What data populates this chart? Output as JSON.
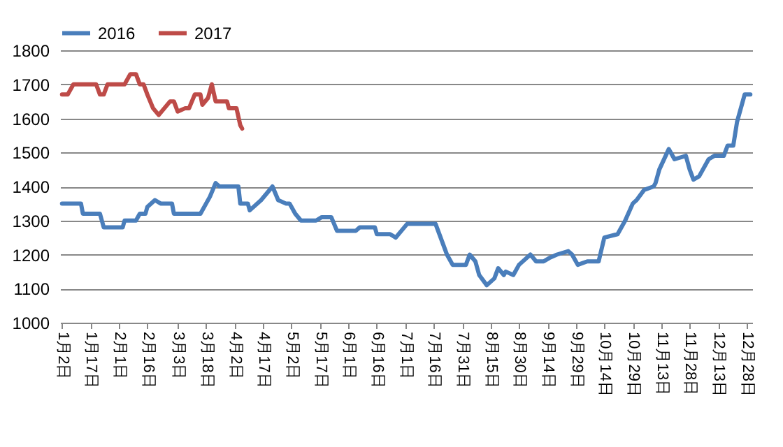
{
  "chart_data": {
    "type": "line",
    "legend": "top",
    "grid": "y",
    "marker": "none",
    "line_style": "solid",
    "ylim": [
      1000,
      1800
    ],
    "yticks": [
      1000,
      1100,
      1200,
      1300,
      1400,
      1500,
      1600,
      1700,
      1800
    ],
    "xlim": [
      "--01-01",
      "--12-31"
    ],
    "xticks": [
      {
        "value": "--01-02",
        "label": "1月2日"
      },
      {
        "value": "--01-17",
        "label": "1月17日"
      },
      {
        "value": "--02-01",
        "label": "2月1日"
      },
      {
        "value": "--02-16",
        "label": "2月16日"
      },
      {
        "value": "--03-03",
        "label": "3月3日"
      },
      {
        "value": "--03-18",
        "label": "3月18日"
      },
      {
        "value": "--04-02",
        "label": "4月2日"
      },
      {
        "value": "--04-17",
        "label": "4月17日"
      },
      {
        "value": "--05-02",
        "label": "5月2日"
      },
      {
        "value": "--05-17",
        "label": "5月17日"
      },
      {
        "value": "--06-01",
        "label": "6月1日"
      },
      {
        "value": "--06-16",
        "label": "6月16日"
      },
      {
        "value": "--07-01",
        "label": "7月1日"
      },
      {
        "value": "--07-16",
        "label": "7月16日"
      },
      {
        "value": "--07-31",
        "label": "7月31日"
      },
      {
        "value": "--08-15",
        "label": "8月15日"
      },
      {
        "value": "--08-30",
        "label": "8月30日"
      },
      {
        "value": "--09-14",
        "label": "9月14日"
      },
      {
        "value": "--09-29",
        "label": "9月29日"
      },
      {
        "value": "--10-14",
        "label": "10月14日"
      },
      {
        "value": "--10-29",
        "label": "10月29日"
      },
      {
        "value": "--11-13",
        "label": "11月13日"
      },
      {
        "value": "--11-28",
        "label": "11月28日"
      },
      {
        "value": "--12-13",
        "label": "12月13日"
      },
      {
        "value": "--12-28",
        "label": "12月28日"
      }
    ],
    "series": [
      {
        "name": "2016",
        "color": "#4a7ebb",
        "x": [
          "--01-02",
          "--01-12",
          "--01-13",
          "--01-22",
          "--01-24",
          "--02-03",
          "--02-04",
          "--02-10",
          "--02-12",
          "--02-15",
          "--02-16",
          "--02-20",
          "--02-23",
          "--02-29",
          "--03-01",
          "--03-15",
          "--03-18",
          "--03-20",
          "--03-23",
          "--03-25",
          "--04-04",
          "--04-05",
          "--04-09",
          "--04-10",
          "--04-16",
          "--04-22",
          "--04-25",
          "--04-29",
          "--05-01",
          "--05-04",
          "--05-07",
          "--05-15",
          "--05-18",
          "--05-23",
          "--05-26",
          "--06-05",
          "--06-07",
          "--06-15",
          "--06-16",
          "--06-23",
          "--06-26",
          "--07-02",
          "--07-17",
          "--07-21",
          "--07-23",
          "--07-26",
          "--08-02",
          "--08-04",
          "--08-07",
          "--08-09",
          "--08-13",
          "--08-17",
          "--08-19",
          "--08-22",
          "--08-23",
          "--08-27",
          "--08-30",
          "--09-05",
          "--09-08",
          "--09-12",
          "--09-15",
          "--09-19",
          "--09-25",
          "--09-27",
          "--09-30",
          "--10-05",
          "--10-11",
          "--10-14",
          "--10-21",
          "--10-25",
          "--10-29",
          "--10-31",
          "--11-04",
          "--11-09",
          "--11-10",
          "--11-12",
          "--11-17",
          "--11-20",
          "--11-26",
          "--11-28",
          "--11-30",
          "--12-03",
          "--12-08",
          "--12-11",
          "--12-16",
          "--12-18",
          "--12-21",
          "--12-23",
          "--12-27",
          "--12-30"
        ],
        "values": [
          1350,
          1350,
          1320,
          1320,
          1280,
          1280,
          1300,
          1300,
          1320,
          1320,
          1340,
          1360,
          1350,
          1350,
          1320,
          1320,
          1350,
          1370,
          1410,
          1400,
          1400,
          1350,
          1350,
          1330,
          1360,
          1400,
          1360,
          1350,
          1350,
          1320,
          1300,
          1300,
          1310,
          1310,
          1270,
          1270,
          1280,
          1280,
          1260,
          1260,
          1250,
          1290,
          1290,
          1230,
          1200,
          1170,
          1170,
          1200,
          1180,
          1140,
          1110,
          1130,
          1160,
          1140,
          1150,
          1140,
          1170,
          1200,
          1180,
          1180,
          1190,
          1200,
          1210,
          1200,
          1170,
          1180,
          1180,
          1250,
          1260,
          1300,
          1350,
          1360,
          1390,
          1400,
          1410,
          1450,
          1510,
          1480,
          1490,
          1450,
          1420,
          1430,
          1480,
          1490,
          1490,
          1520,
          1520,
          1590,
          1670,
          1670
        ]
      },
      {
        "name": "2017",
        "color": "#be4b48",
        "x": [
          "--01-02",
          "--01-05",
          "--01-08",
          "--01-20",
          "--01-22",
          "--01-24",
          "--01-26",
          "--02-04",
          "--02-07",
          "--02-10",
          "--02-12",
          "--02-14",
          "--02-16",
          "--02-19",
          "--02-22",
          "--02-28",
          "--03-01",
          "--03-03",
          "--03-07",
          "--03-09",
          "--03-12",
          "--03-15",
          "--03-16",
          "--03-19",
          "--03-21",
          "--03-23",
          "--03-29",
          "--03-30",
          "--04-03",
          "--04-05",
          "--04-06"
        ],
        "values": [
          1670,
          1670,
          1700,
          1700,
          1670,
          1670,
          1700,
          1700,
          1730,
          1730,
          1700,
          1700,
          1670,
          1630,
          1610,
          1650,
          1650,
          1620,
          1630,
          1630,
          1670,
          1670,
          1640,
          1660,
          1700,
          1650,
          1650,
          1630,
          1630,
          1580,
          1570
        ]
      }
    ]
  }
}
